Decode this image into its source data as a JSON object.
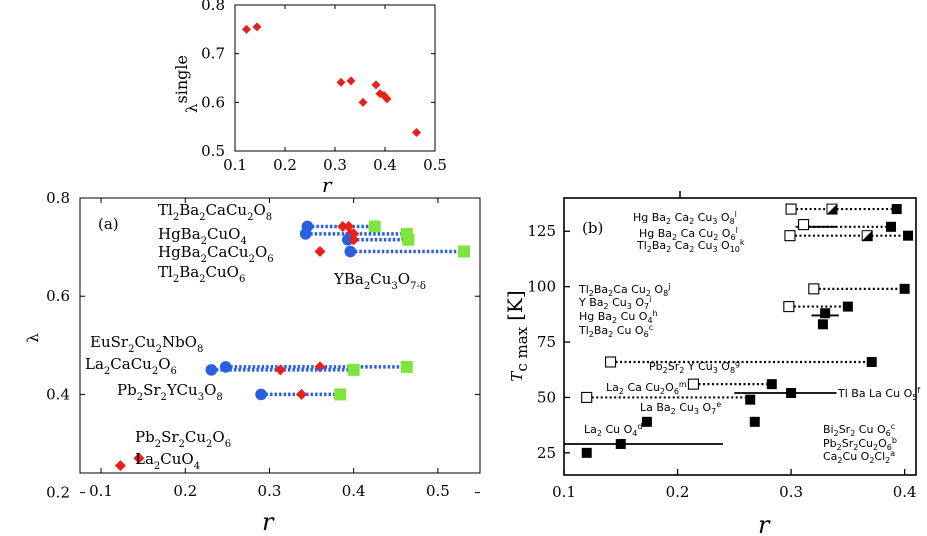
{
  "colors": {
    "red": "#e8201c",
    "blue": "#2a5fe0",
    "green": "#7ee63a",
    "black": "#000000"
  },
  "chart_data": [
    {
      "id": "inset",
      "type": "scatter",
      "xlabel": "r",
      "ylabel": "λ",
      "ylabel_sup": "single",
      "xlim": [
        0.1,
        0.5
      ],
      "ylim": [
        0.5,
        0.8
      ],
      "xticks": [
        "0.1",
        "0.2",
        "0.3",
        "0.4",
        "0.5"
      ],
      "yticks": [
        "0.5",
        "0.6",
        "0.7",
        "0.8"
      ],
      "points": [
        [
          0.123,
          0.75
        ],
        [
          0.144,
          0.755
        ],
        [
          0.312,
          0.641
        ],
        [
          0.332,
          0.644
        ],
        [
          0.356,
          0.6
        ],
        [
          0.382,
          0.636
        ],
        [
          0.39,
          0.618
        ],
        [
          0.398,
          0.614
        ],
        [
          0.404,
          0.607
        ],
        [
          0.463,
          0.538
        ]
      ]
    },
    {
      "id": "a",
      "type": "scatter",
      "panel_label": "(a)",
      "xlabel": "r",
      "ylabel": "λ",
      "xlim": [
        0.075,
        0.55
      ],
      "ylim": [
        0.24,
        0.8
      ],
      "xticks": [
        "0.1",
        "0.2",
        "0.3",
        "0.4",
        "0.5"
      ],
      "yticks": [
        "0.2",
        "0.4",
        "0.6",
        "0.8"
      ],
      "rows": [
        {
          "blue": 0.345,
          "red": [
            0.387,
            0.394
          ],
          "green": 0.425,
          "y": 0.742
        },
        {
          "blue": 0.343,
          "red": [
            0.396,
            0.4
          ],
          "green": 0.463,
          "y": 0.727
        },
        {
          "blue": 0.393,
          "red": [
            0.4
          ],
          "green": 0.465,
          "y": 0.715
        },
        {
          "blue": 0.396,
          "red": [
            0.36
          ],
          "green": 0.531,
          "y": 0.691
        },
        {
          "blue": 0.248,
          "red": [
            0.36
          ],
          "green": 0.463,
          "y": 0.456
        },
        {
          "blue": 0.231,
          "red": [
            0.313
          ],
          "green": 0.4,
          "y": 0.45
        },
        {
          "blue": 0.29,
          "red": [
            0.338
          ],
          "green": 0.384,
          "y": 0.4
        }
      ],
      "singles": [
        {
          "x": 0.145,
          "y": 0.27
        },
        {
          "x": 0.123,
          "y": 0.255
        }
      ],
      "labels": {
        "tl2212": [
          "Tl",
          "2",
          "Ba",
          "2",
          "CaCu",
          "2",
          "O",
          "8"
        ],
        "hg1201": [
          "HgBa",
          "2",
          "CuO",
          "4"
        ],
        "hg1212": [
          "HgBa",
          "2",
          "CaCu",
          "2",
          "O",
          "6"
        ],
        "tl2201": [
          "Tl",
          "2",
          "Ba",
          "2",
          "CuO",
          "6"
        ],
        "ybco": [
          "YBa",
          "2",
          "Cu",
          "3",
          "O",
          "7-δ"
        ],
        "eusr": [
          "EuSr",
          "2",
          "Cu",
          "2",
          "NbO",
          "8"
        ],
        "la2ca": [
          "La",
          "2",
          "CaCu",
          "2",
          "O",
          "6"
        ],
        "pb2sr2y": [
          "Pb",
          "2",
          "Sr",
          "2",
          "YCu",
          "3",
          "O",
          "8"
        ],
        "pb2sr2cu": [
          "Pb",
          "2",
          "Sr",
          "2",
          "Cu",
          "2",
          "O",
          "6"
        ],
        "la2cuo4": [
          "La",
          "2",
          "CuO",
          "4"
        ]
      }
    },
    {
      "id": "b",
      "type": "scatter",
      "panel_label": "(b)",
      "xlabel": "r",
      "ylabel": "T",
      "ylabel_sub": "c max",
      "ylabel_unit": "[K]",
      "xlim": [
        0.1,
        0.41
      ],
      "ylim": [
        15,
        140
      ],
      "xticks": [
        "0.1",
        "0.2",
        "0.3",
        "0.4"
      ],
      "yticks": [
        "25",
        "50",
        "75",
        "100",
        "125"
      ],
      "filled": [
        [
          0.393,
          135
        ],
        [
          0.388,
          127
        ],
        [
          0.403,
          123
        ],
        [
          0.4,
          99
        ],
        [
          0.35,
          91
        ],
        [
          0.33,
          88
        ],
        [
          0.328,
          83
        ],
        [
          0.371,
          66
        ],
        [
          0.283,
          56
        ],
        [
          0.3,
          52
        ],
        [
          0.264,
          49
        ],
        [
          0.173,
          39
        ],
        [
          0.268,
          39
        ],
        [
          0.15,
          29
        ],
        [
          0.12,
          25
        ]
      ],
      "hollow": [
        [
          0.3,
          135
        ],
        [
          0.311,
          128
        ],
        [
          0.299,
          123
        ],
        [
          0.32,
          99
        ],
        [
          0.298,
          91
        ],
        [
          0.141,
          66
        ],
        [
          0.214,
          56
        ],
        [
          0.12,
          50
        ]
      ],
      "half": [
        [
          0.336,
          135
        ],
        [
          0.367,
          123
        ]
      ],
      "dotted": [
        [
          0.3,
          0.393,
          135
        ],
        [
          0.311,
          0.388,
          127
        ],
        [
          0.299,
          0.403,
          123
        ],
        [
          0.32,
          0.4,
          99
        ],
        [
          0.298,
          0.35,
          91
        ],
        [
          0.141,
          0.371,
          66
        ],
        [
          0.214,
          0.283,
          56
        ],
        [
          0.12,
          0.264,
          50
        ]
      ],
      "hbars": [
        [
          0.304,
          0.34,
          127
        ],
        [
          0.318,
          0.342,
          87
        ],
        [
          0.25,
          0.34,
          52
        ],
        [
          0.1,
          0.24,
          29
        ]
      ],
      "labels": {
        "r1": [
          [
            "Hg Ba",
            ""
          ],
          [
            "2",
            "s"
          ],
          [
            " Ca",
            ""
          ],
          [
            "2",
            "s"
          ],
          [
            " Cu",
            ""
          ],
          [
            "3",
            "s"
          ],
          [
            " O",
            ""
          ],
          [
            "8",
            "s"
          ],
          [
            "l",
            "p"
          ]
        ],
        "r2": [
          [
            "Hg Ba",
            ""
          ],
          [
            "2",
            "s"
          ],
          [
            " Ca Cu",
            ""
          ],
          [
            "2",
            "s"
          ],
          [
            " O",
            ""
          ],
          [
            "6",
            "s"
          ],
          [
            "l",
            "p"
          ]
        ],
        "r3": [
          [
            "Tl",
            ""
          ],
          [
            "2",
            "s"
          ],
          [
            "Ba",
            ""
          ],
          [
            "2",
            "s"
          ],
          [
            " Ca",
            ""
          ],
          [
            "2",
            "s"
          ],
          [
            " Cu",
            ""
          ],
          [
            "3",
            "s"
          ],
          [
            " O",
            ""
          ],
          [
            "10",
            "s"
          ],
          [
            "k",
            "p"
          ]
        ],
        "r4": [
          [
            "Tl",
            ""
          ],
          [
            "2",
            "s"
          ],
          [
            "Ba",
            ""
          ],
          [
            "2",
            "s"
          ],
          [
            "Ca Cu",
            ""
          ],
          [
            "2",
            "s"
          ],
          [
            " O",
            ""
          ],
          [
            "8",
            "s"
          ],
          [
            "j",
            "p"
          ]
        ],
        "r5": [
          [
            "Y  Ba",
            ""
          ],
          [
            "2",
            "s"
          ],
          [
            " Cu",
            ""
          ],
          [
            "3",
            "s"
          ],
          [
            " O",
            ""
          ],
          [
            "7",
            "s"
          ],
          [
            "i",
            "p"
          ]
        ],
        "r6": [
          [
            "Hg Ba",
            ""
          ],
          [
            "2",
            "s"
          ],
          [
            " Cu  O",
            ""
          ],
          [
            "4",
            "s"
          ],
          [
            "h",
            "p"
          ]
        ],
        "r7": [
          [
            "Tl",
            ""
          ],
          [
            "2",
            "s"
          ],
          [
            "Ba",
            ""
          ],
          [
            "2",
            "s"
          ],
          [
            " Cu  O",
            ""
          ],
          [
            "6",
            "s"
          ],
          [
            "c",
            "p"
          ]
        ],
        "r8": [
          [
            "Pb",
            ""
          ],
          [
            "2",
            "s"
          ],
          [
            "Sr",
            ""
          ],
          [
            "2",
            "s"
          ],
          [
            " Y Cu",
            ""
          ],
          [
            "3",
            "s"
          ],
          [
            " O",
            ""
          ],
          [
            "8",
            "s"
          ],
          [
            "g",
            "p"
          ]
        ],
        "r9": [
          [
            "La",
            ""
          ],
          [
            "2",
            "s"
          ],
          [
            " Ca Cu",
            ""
          ],
          [
            "2",
            "s"
          ],
          [
            "O",
            ""
          ],
          [
            "6",
            "s"
          ],
          [
            "m",
            "p"
          ]
        ],
        "r10": [
          [
            "Tl Ba La Cu O",
            ""
          ],
          [
            "5",
            "s"
          ],
          [
            "f",
            "p"
          ]
        ],
        "r11": [
          [
            "La Ba",
            ""
          ],
          [
            "2",
            "s"
          ],
          [
            " Cu",
            ""
          ],
          [
            "3",
            "s"
          ],
          [
            " O",
            ""
          ],
          [
            "7",
            "s"
          ],
          [
            "e",
            "p"
          ]
        ],
        "r12": [
          [
            "La",
            ""
          ],
          [
            "2",
            "s"
          ],
          [
            " Cu  O",
            ""
          ],
          [
            "4",
            "s"
          ],
          [
            "d",
            "p"
          ]
        ],
        "r13": [
          [
            "Bi",
            ""
          ],
          [
            "2",
            "s"
          ],
          [
            "Sr",
            ""
          ],
          [
            "2",
            "s"
          ],
          [
            " Cu  O",
            ""
          ],
          [
            "6",
            "s"
          ],
          [
            "c",
            "p"
          ]
        ],
        "r14": [
          [
            "Pb",
            ""
          ],
          [
            "2",
            "s"
          ],
          [
            "Sr",
            ""
          ],
          [
            "2",
            "s"
          ],
          [
            "Cu",
            ""
          ],
          [
            "2",
            "s"
          ],
          [
            "O",
            ""
          ],
          [
            "6",
            "s"
          ],
          [
            "b",
            "p"
          ]
        ],
        "r15": [
          [
            "Ca",
            ""
          ],
          [
            "2",
            "s"
          ],
          [
            "Cu  O",
            ""
          ],
          [
            "2",
            "s"
          ],
          [
            "Cl",
            ""
          ],
          [
            "2",
            "s"
          ],
          [
            "a",
            "p"
          ]
        ]
      }
    }
  ]
}
